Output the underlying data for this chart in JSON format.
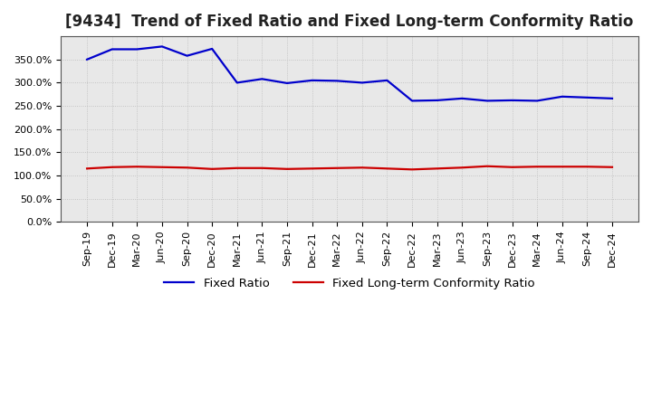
{
  "title": "[9434]  Trend of Fixed Ratio and Fixed Long-term Conformity Ratio",
  "x_labels": [
    "Sep-19",
    "Dec-19",
    "Mar-20",
    "Jun-20",
    "Sep-20",
    "Dec-20",
    "Mar-21",
    "Jun-21",
    "Sep-21",
    "Dec-21",
    "Mar-22",
    "Jun-22",
    "Sep-22",
    "Dec-22",
    "Mar-23",
    "Jun-23",
    "Sep-23",
    "Dec-23",
    "Mar-24",
    "Jun-24",
    "Sep-24",
    "Dec-24"
  ],
  "fixed_ratio": [
    3.5,
    3.72,
    3.72,
    3.78,
    3.58,
    3.73,
    3.0,
    3.08,
    2.99,
    3.05,
    3.04,
    3.0,
    3.05,
    2.61,
    2.62,
    2.66,
    2.61,
    2.62,
    2.61,
    2.7,
    2.68,
    2.66
  ],
  "fixed_lt_ratio": [
    1.15,
    1.18,
    1.19,
    1.18,
    1.17,
    1.14,
    1.16,
    1.16,
    1.14,
    1.15,
    1.16,
    1.17,
    1.15,
    1.13,
    1.15,
    1.17,
    1.2,
    1.18,
    1.19,
    1.19,
    1.19,
    1.18
  ],
  "fixed_ratio_color": "#0000cc",
  "fixed_lt_ratio_color": "#cc0000",
  "background_color": "#ffffff",
  "plot_bg_color": "#e8e8e8",
  "grid_color": "#bbbbbb",
  "ylim": [
    0.0,
    4.0
  ],
  "yticks": [
    0.0,
    0.5,
    1.0,
    1.5,
    2.0,
    2.5,
    3.0,
    3.5
  ],
  "legend_fixed_ratio": "Fixed Ratio",
  "legend_fixed_lt_ratio": "Fixed Long-term Conformity Ratio",
  "title_fontsize": 12,
  "tick_fontsize": 8,
  "legend_fontsize": 9.5,
  "line_width": 1.6
}
